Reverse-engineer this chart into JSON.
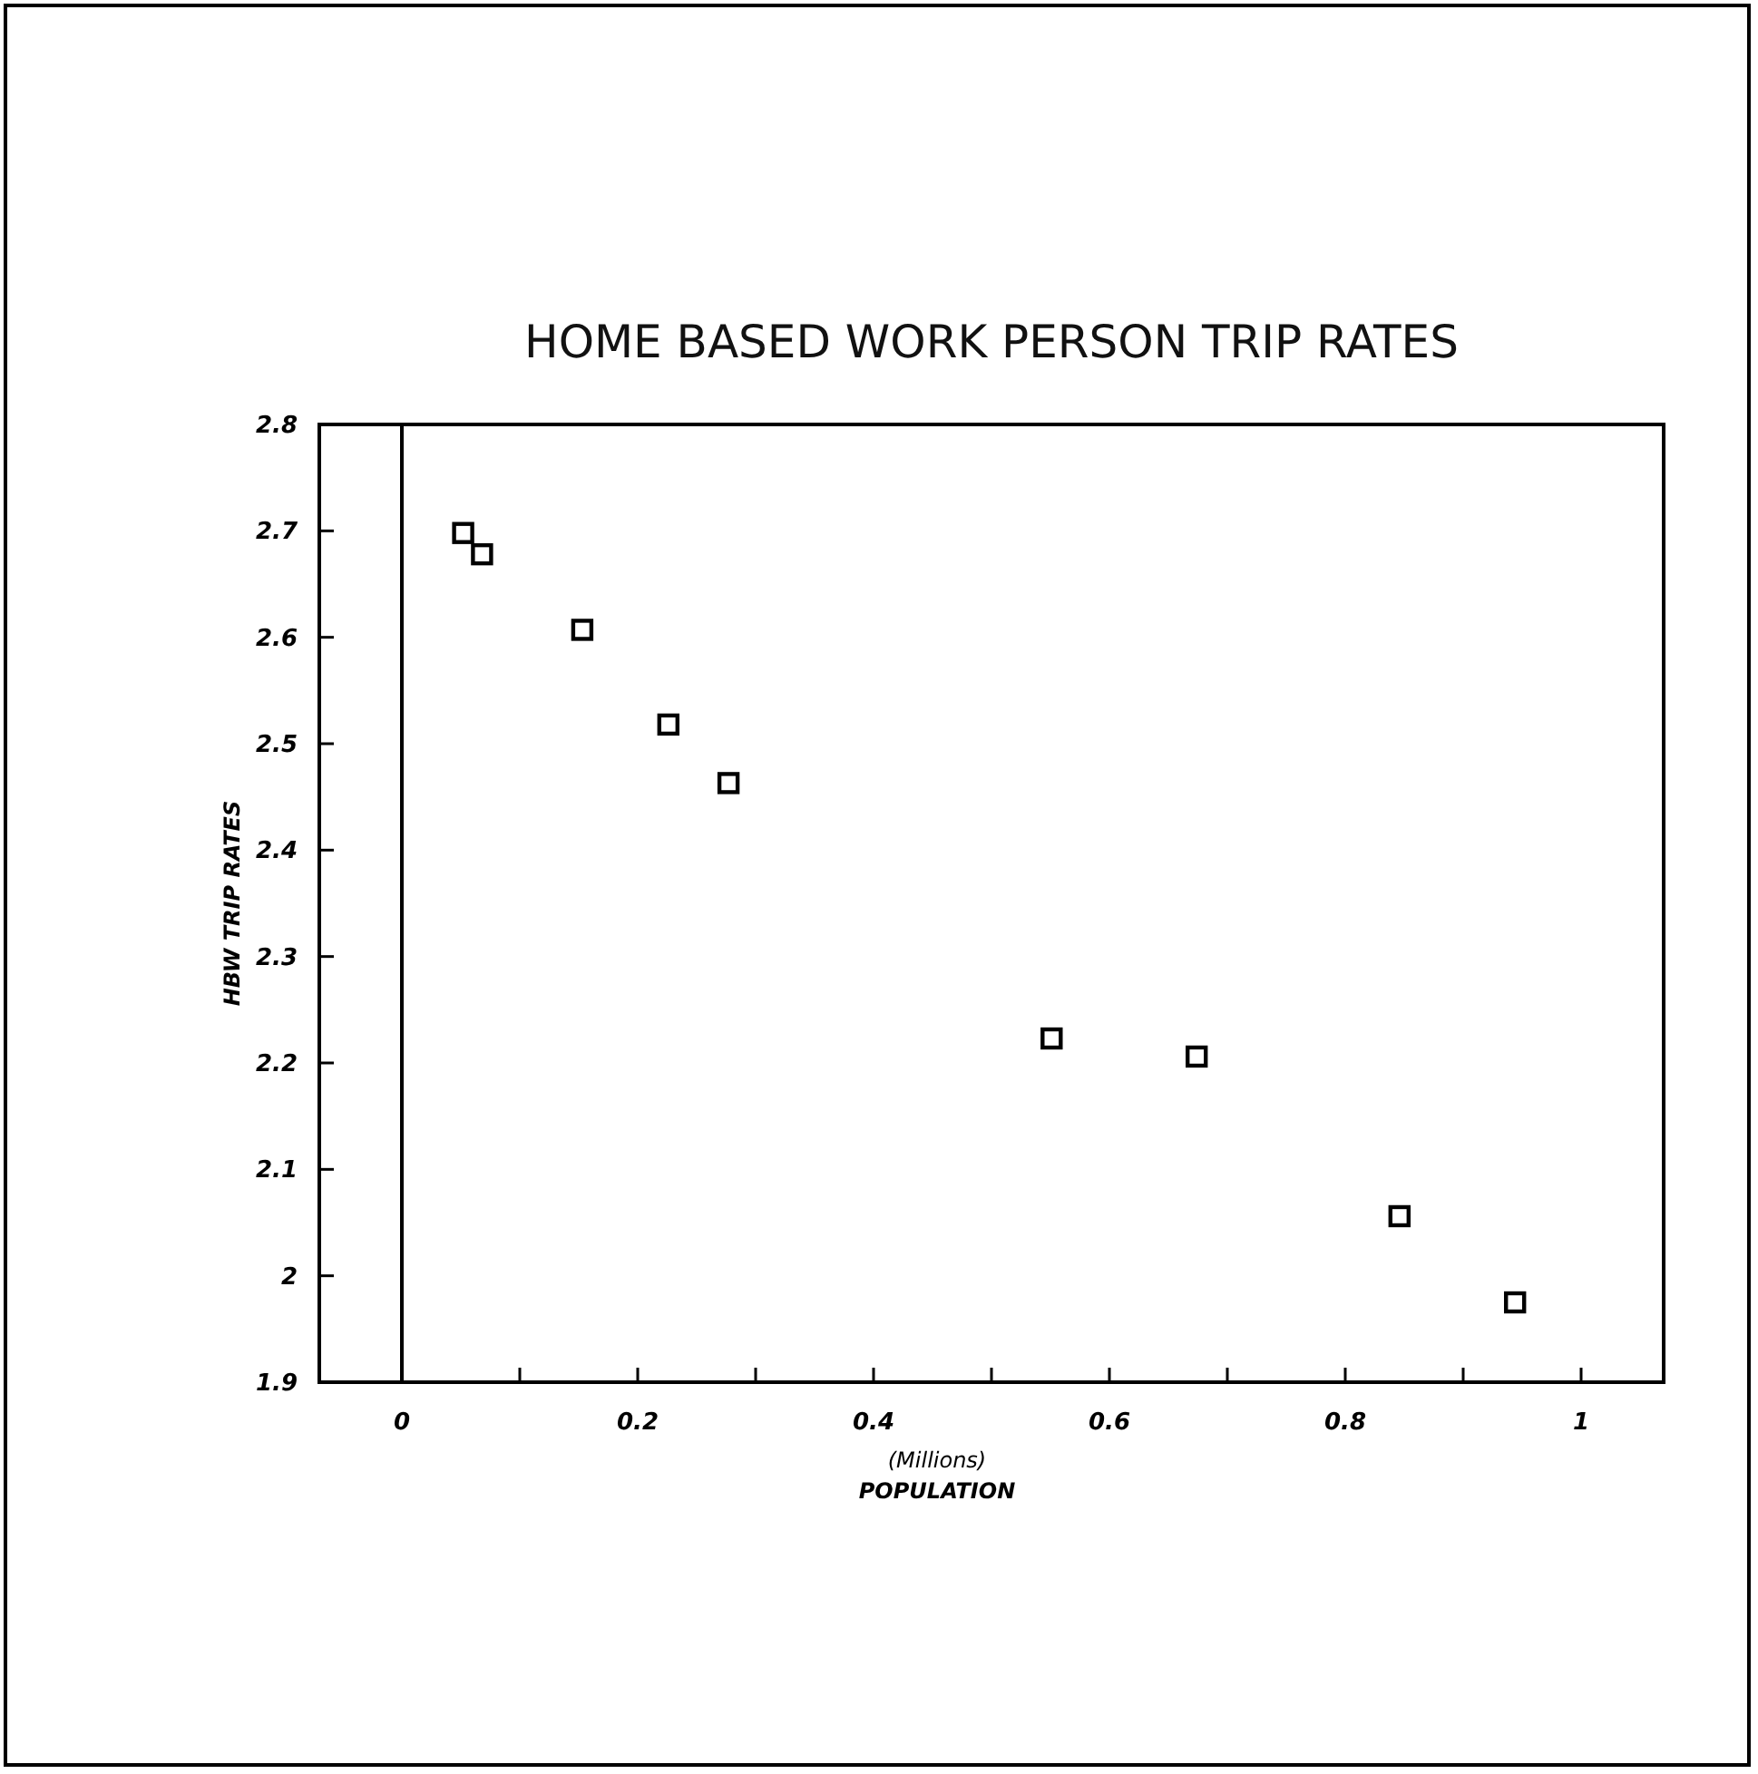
{
  "chart_data": {
    "type": "scatter",
    "title": "HOME BASED WORK PERSON TRIP RATES",
    "xlabel": "POPULATION",
    "ylabel": "HBW TRIP RATES",
    "annotations": [
      "(Millions)"
    ],
    "x": [
      0.052,
      0.068,
      0.153,
      0.226,
      0.277,
      0.551,
      0.674,
      0.846,
      0.944
    ],
    "series": [
      {
        "color": "#000000",
        "values": [
          2.698,
          2.678,
          2.607,
          2.518,
          2.463,
          2.223,
          2.206,
          2.056,
          1.975
        ]
      }
    ],
    "marker": "square",
    "xlim": [
      -0.07,
      1.07
    ],
    "ylim": [
      1.9,
      2.8
    ],
    "xticks": [
      0,
      {
        "value": 0.1,
        "label": null
      },
      0.2,
      {
        "value": 0.3,
        "label": null
      },
      0.4,
      {
        "value": 0.5,
        "label": null
      },
      0.6,
      {
        "value": 0.7,
        "label": null
      },
      0.8,
      {
        "value": 0.9,
        "label": null
      },
      1
    ],
    "yticks": [
      1.9,
      2,
      2.1,
      2.2,
      2.3,
      2.4,
      2.5,
      2.6,
      2.7,
      2.8
    ],
    "ref_lines": [
      {
        "axis": "x",
        "value": 0,
        "color": "#000000"
      }
    ],
    "grid": false
  }
}
